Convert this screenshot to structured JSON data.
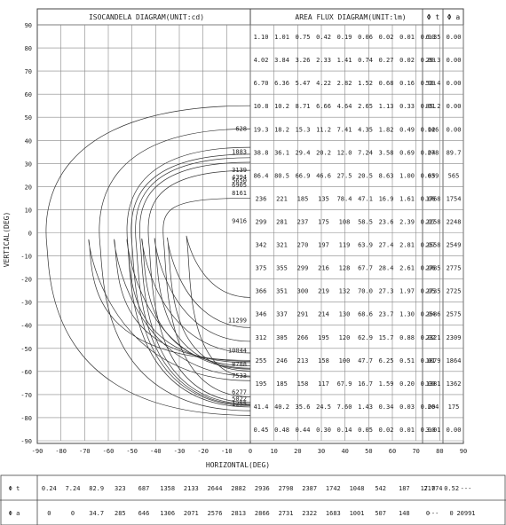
{
  "chart_data": [
    {
      "type": "heatmap",
      "title": "ISOCANDELA DIAGRAM(UNIT:cd)",
      "xlabel": "HORIZONTAL(DEG)",
      "ylabel": "VERTICAL(DEG)",
      "xlim": [
        -90,
        90
      ],
      "ylim": [
        -90,
        90
      ],
      "x_ticks": [
        "-90",
        "-80",
        "-70",
        "-60",
        "-50",
        "-40",
        "-30",
        "-20",
        "-10",
        "0",
        "10",
        "20",
        "30",
        "40",
        "50",
        "60",
        "70",
        "80",
        "90"
      ],
      "y_ticks": [
        "90",
        "80",
        "70",
        "60",
        "50",
        "40",
        "30",
        "20",
        "10",
        "0",
        "-10",
        "-20",
        "-30",
        "-40",
        "-50",
        "-60",
        "-70",
        "-80",
        "-90"
      ],
      "grid": true,
      "isolines": [
        {
          "label": "628",
          "y": 45,
          "width": 90,
          "offset": 10
        },
        {
          "label": "1883",
          "y": 35,
          "width": 65,
          "offset": 7
        },
        {
          "label": "3139",
          "y": 27,
          "width": 52,
          "offset": 5
        },
        {
          "label": "4394",
          "y": 24,
          "width": 50,
          "offset": 4
        },
        {
          "label": "5650",
          "y": 22.5,
          "width": 48,
          "offset": 3
        },
        {
          "label": "6905",
          "y": 20.5,
          "width": 46,
          "offset": 2
        },
        {
          "label": "8161",
          "y": 17,
          "width": 42,
          "offset": 1
        },
        {
          "label": "9416",
          "y": 5,
          "width": 35,
          "offset": 0
        },
        {
          "label": "11299",
          "y": -38,
          "width": 24,
          "offset": -1
        },
        {
          "label": "10044",
          "y": -51,
          "width": 33,
          "offset": -2
        },
        {
          "label": "8788",
          "y": -57,
          "width": 39,
          "offset": -3
        },
        {
          "label": "7533",
          "y": -62,
          "width": 45,
          "offset": -4
        },
        {
          "label": "6277",
          "y": -69,
          "width": 52,
          "offset": -5
        },
        {
          "label": "5022",
          "y": -72,
          "width": 58,
          "offset": -6
        },
        {
          "label": "1255",
          "y": -74,
          "width": 70,
          "offset": -8
        }
      ]
    },
    {
      "type": "table",
      "title": "AREA FLUX DIAGRAM(UNIT:lm)",
      "columns": [
        "",
        "",
        "",
        "",
        "",
        "",
        "",
        "",
        "",
        "Φ t",
        "Φ a"
      ],
      "rows": [
        [
          "1.10",
          "1.01",
          "0.75",
          "0.42",
          "0.19",
          "0.06",
          "0.02",
          "0.01",
          "0.00",
          "6.35",
          "0.00"
        ],
        [
          "4.02",
          "3.84",
          "3.26",
          "2.33",
          "1.41",
          "0.74",
          "0.27",
          "0.02",
          "0.00",
          "29.3",
          "0.00"
        ],
        [
          "6.70",
          "6.36",
          "5.47",
          "4.22",
          "2.82",
          "1.52",
          "0.68",
          "0.16",
          "0.00",
          "52.4",
          "0.00"
        ],
        [
          "10.8",
          "10.2",
          "8.71",
          "6.66",
          "4.64",
          "2.65",
          "1.13",
          "0.33",
          "0.01",
          "85.2",
          "0.00"
        ],
        [
          "19.3",
          "18.2",
          "15.3",
          "11.2",
          "7.41",
          "4.35",
          "1.82",
          "0.49",
          "0.02",
          "146",
          "0.00"
        ],
        [
          "38.8",
          "36.1",
          "29.4",
          "20.2",
          "12.0",
          "7.24",
          "3.58",
          "0.69",
          "0.04",
          "278",
          "89.7"
        ],
        [
          "86.4",
          "80.5",
          "66.9",
          "46.6",
          "27.5",
          "20.5",
          "8.63",
          "1.00",
          "0.05",
          "639",
          "565"
        ],
        [
          "236",
          "221",
          "185",
          "135",
          "78.4",
          "47.1",
          "16.9",
          "1.61",
          "0.06",
          "1768",
          "1754"
        ],
        [
          "299",
          "281",
          "237",
          "175",
          "108",
          "58.5",
          "23.6",
          "2.39",
          "0.07",
          "2258",
          "2248"
        ],
        [
          "342",
          "321",
          "270",
          "197",
          "119",
          "63.9",
          "27.4",
          "2.81",
          "0.07",
          "2558",
          "2549"
        ],
        [
          "375",
          "355",
          "299",
          "216",
          "128",
          "67.7",
          "28.4",
          "2.61",
          "0.06",
          "2785",
          "2775"
        ],
        [
          "366",
          "351",
          "300",
          "219",
          "132",
          "70.0",
          "27.3",
          "1.97",
          "0.05",
          "2735",
          "2725"
        ],
        [
          "346",
          "337",
          "291",
          "214",
          "130",
          "68.6",
          "23.7",
          "1.30",
          "0.04",
          "2586",
          "2575"
        ],
        [
          "312",
          "305",
          "266",
          "195",
          "120",
          "62.9",
          "15.7",
          "0.88",
          "0.02",
          "2321",
          "2309"
        ],
        [
          "255",
          "246",
          "213",
          "158",
          "100",
          "47.7",
          "6.25",
          "0.51",
          "0.01",
          "1879",
          "1864"
        ],
        [
          "195",
          "185",
          "158",
          "117",
          "67.9",
          "16.7",
          "1.59",
          "0.20",
          "0.00",
          "1381",
          "1362"
        ],
        [
          "41.4",
          "40.2",
          "35.6",
          "24.5",
          "7.60",
          "1.43",
          "0.34",
          "0.03",
          "0.00",
          "264",
          "175"
        ],
        [
          "0.45",
          "0.48",
          "0.44",
          "0.30",
          "0.14",
          "0.05",
          "0.02",
          "0.01",
          "0.00",
          "3.01",
          "0.00"
        ]
      ]
    },
    {
      "type": "table",
      "rows": [
        {
          "label": "Φ t",
          "values": [
            "0.24",
            "7.24",
            "82.9",
            "323",
            "687",
            "1358",
            "2133",
            "2644",
            "2882",
            "2936",
            "2798",
            "2387",
            "1742",
            "1048",
            "542",
            "187",
            "17.0",
            "0.52",
            "21774",
            "---"
          ]
        },
        {
          "label": "Φ a",
          "values": [
            "0",
            "0",
            "34.7",
            "285",
            "646",
            "1306",
            "2071",
            "2576",
            "2813",
            "2866",
            "2731",
            "2322",
            "1683",
            "1001",
            "507",
            "148",
            "0",
            "0",
            "---",
            "20991"
          ]
        }
      ]
    }
  ]
}
